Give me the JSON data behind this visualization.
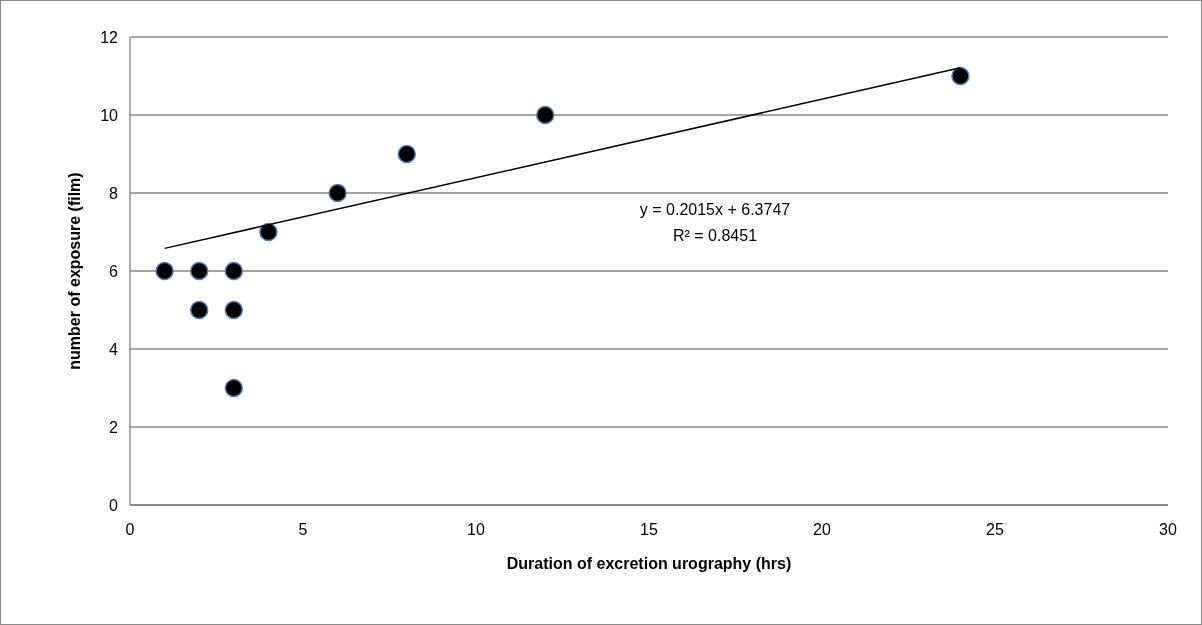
{
  "chart_data": {
    "type": "scatter",
    "xlabel": "Duration of excretion urography (hrs)",
    "ylabel": "number of exposure (film)",
    "xlim": [
      0,
      30
    ],
    "xticks": [
      0,
      5,
      10,
      15,
      20,
      25,
      30
    ],
    "ylim": [
      0,
      12
    ],
    "yticks": [
      0,
      2,
      4,
      6,
      8,
      10,
      12
    ],
    "grid": "y",
    "series": [
      {
        "color": "#000000",
        "marker": "circle",
        "x": [
          1,
          2,
          2,
          3,
          3,
          3,
          4,
          6,
          8,
          12,
          24
        ],
        "values": [
          6,
          6,
          5,
          6,
          5,
          3,
          7,
          8,
          9,
          10,
          11
        ]
      },
      {
        "type": "line",
        "color": "#000000",
        "line_style": "solid",
        "x": [
          1,
          24
        ],
        "values": [
          6.58,
          11.21
        ]
      }
    ],
    "annotations": [
      "y = 0.2015x + 6.3747",
      "R² = 0.8451"
    ]
  }
}
